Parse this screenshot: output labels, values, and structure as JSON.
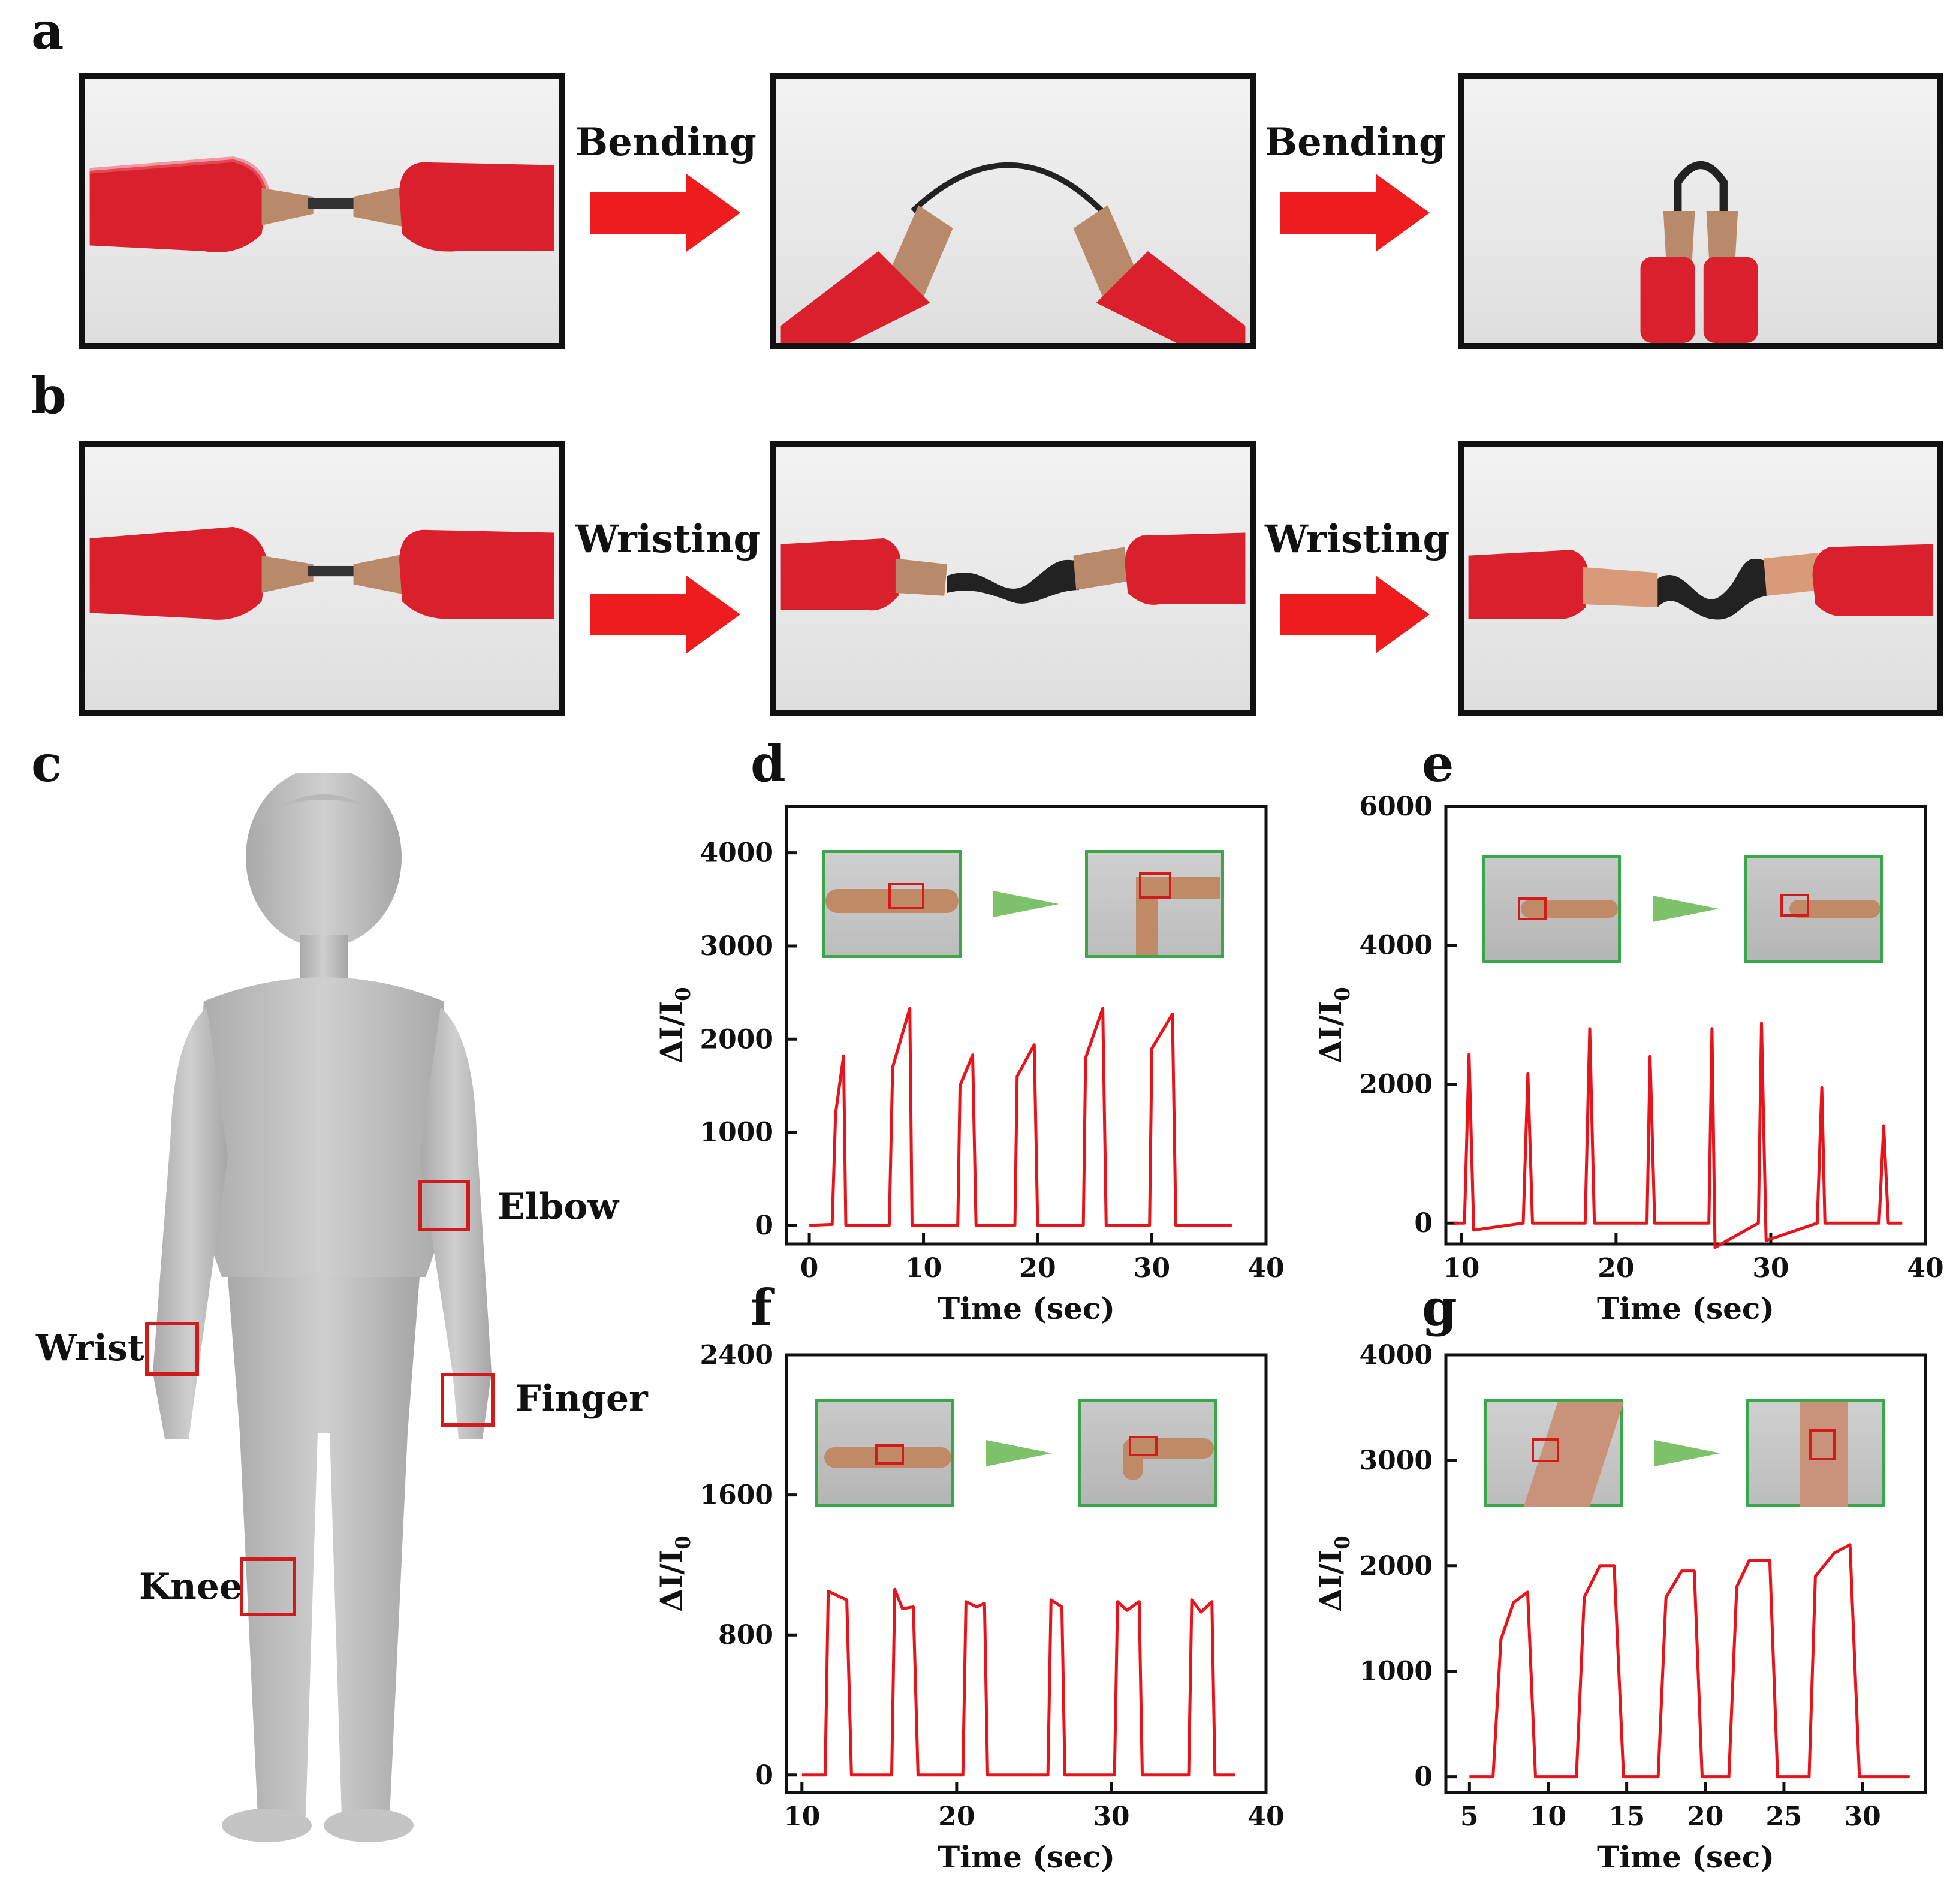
{
  "panels": {
    "a": "a",
    "b": "b",
    "c": "c",
    "d": "d",
    "e": "e",
    "f": "f",
    "g": "g"
  },
  "row_a": {
    "step1": "Bending",
    "step2": "Bending"
  },
  "row_b": {
    "step1": "Wristing",
    "step2": "Wristing"
  },
  "body_labels": {
    "elbow": "Elbow",
    "wrist": "Wrist",
    "finger": "Finger",
    "knee": "Knee"
  },
  "colors": {
    "trace": "#e8141b",
    "inset_border": "#3aa84a",
    "clip_red": "#d9202c",
    "arrow_red": "#ee1c1c"
  },
  "chart_data": [
    {
      "id": "d",
      "type": "line",
      "xlabel": "Time (sec)",
      "ylabel": "ΔI/I0",
      "xlim": [
        -2,
        40
      ],
      "ylim": [
        -200,
        4500
      ],
      "xticks": [
        0,
        10,
        20,
        30,
        40
      ],
      "yticks": [
        0,
        1000,
        2000,
        3000,
        4000
      ],
      "series": [
        {
          "points": [
            [
              0,
              0
            ],
            [
              2,
              10
            ],
            [
              2.3,
              1200
            ],
            [
              3,
              1820
            ],
            [
              3.2,
              0
            ],
            [
              7,
              0
            ],
            [
              7.3,
              1700
            ],
            [
              8.8,
              2330
            ],
            [
              9,
              0
            ],
            [
              13,
              0
            ],
            [
              13.2,
              1500
            ],
            [
              14.3,
              1830
            ],
            [
              14.6,
              0
            ],
            [
              18,
              0
            ],
            [
              18.2,
              1600
            ],
            [
              19.7,
              1940
            ],
            [
              20,
              0
            ],
            [
              24,
              0
            ],
            [
              24.2,
              1800
            ],
            [
              25.7,
              2330
            ],
            [
              26,
              0
            ],
            [
              29.8,
              0
            ],
            [
              30,
              1900
            ],
            [
              31.8,
              2270
            ],
            [
              32.1,
              0
            ],
            [
              37,
              0
            ]
          ]
        }
      ]
    },
    {
      "id": "e",
      "type": "line",
      "xlabel": "Time (sec)",
      "ylabel": "ΔI/I0",
      "xlim": [
        9,
        40
      ],
      "ylim": [
        -300,
        6000
      ],
      "xticks": [
        10,
        20,
        30,
        40
      ],
      "yticks": [
        0,
        2000,
        4000,
        6000
      ],
      "series": [
        {
          "points": [
            [
              9.5,
              0
            ],
            [
              10.2,
              0
            ],
            [
              10.5,
              2430
            ],
            [
              10.8,
              -100
            ],
            [
              14,
              0
            ],
            [
              14.3,
              2150
            ],
            [
              14.6,
              0
            ],
            [
              18,
              0
            ],
            [
              18.3,
              2800
            ],
            [
              18.6,
              0
            ],
            [
              22,
              0
            ],
            [
              22.2,
              2400
            ],
            [
              22.5,
              0
            ],
            [
              26,
              0
            ],
            [
              26.2,
              2800
            ],
            [
              26.4,
              -350
            ],
            [
              29.2,
              0
            ],
            [
              29.4,
              2880
            ],
            [
              29.7,
              -250
            ],
            [
              33,
              0
            ],
            [
              33.3,
              1950
            ],
            [
              33.5,
              0
            ],
            [
              37,
              0
            ],
            [
              37.3,
              1400
            ],
            [
              37.6,
              0
            ],
            [
              38.5,
              0
            ]
          ]
        }
      ]
    },
    {
      "id": "f",
      "type": "line",
      "xlabel": "Time (sec)",
      "ylabel": "ΔI/I0",
      "xlim": [
        9,
        40
      ],
      "ylim": [
        -100,
        2400
      ],
      "xticks": [
        10,
        20,
        30,
        40
      ],
      "yticks": [
        0,
        800,
        1600,
        2400
      ],
      "series": [
        {
          "points": [
            [
              10,
              0
            ],
            [
              11.5,
              0
            ],
            [
              11.7,
              1050
            ],
            [
              12.4,
              1020
            ],
            [
              12.9,
              1000
            ],
            [
              13.2,
              0
            ],
            [
              15.8,
              0
            ],
            [
              16,
              1060
            ],
            [
              16.5,
              950
            ],
            [
              17.2,
              960
            ],
            [
              17.5,
              0
            ],
            [
              20.4,
              0
            ],
            [
              20.6,
              990
            ],
            [
              21.3,
              960
            ],
            [
              21.8,
              980
            ],
            [
              22,
              0
            ],
            [
              25.9,
              0
            ],
            [
              26.1,
              1000
            ],
            [
              26.8,
              960
            ],
            [
              27,
              0
            ],
            [
              30.2,
              0
            ],
            [
              30.4,
              990
            ],
            [
              31,
              940
            ],
            [
              31.8,
              990
            ],
            [
              32,
              0
            ],
            [
              35,
              0
            ],
            [
              35.2,
              1000
            ],
            [
              35.8,
              930
            ],
            [
              36.5,
              990
            ],
            [
              36.7,
              0
            ],
            [
              38,
              0
            ]
          ]
        }
      ]
    },
    {
      "id": "g",
      "type": "line",
      "xlabel": "Time (sec)",
      "ylabel": "ΔI/I0",
      "xlim": [
        3.5,
        34
      ],
      "ylim": [
        -150,
        4000
      ],
      "xticks": [
        5,
        10,
        15,
        20,
        25,
        30
      ],
      "yticks": [
        0,
        1000,
        2000,
        3000,
        4000
      ],
      "series": [
        {
          "points": [
            [
              5,
              0
            ],
            [
              6.5,
              0
            ],
            [
              7,
              1300
            ],
            [
              7.8,
              1650
            ],
            [
              8.7,
              1750
            ],
            [
              9.2,
              0
            ],
            [
              11.8,
              0
            ],
            [
              12.3,
              1700
            ],
            [
              13.3,
              2000
            ],
            [
              14.2,
              2000
            ],
            [
              14.8,
              0
            ],
            [
              17,
              0
            ],
            [
              17.5,
              1700
            ],
            [
              18.5,
              1950
            ],
            [
              19.3,
              1950
            ],
            [
              19.8,
              0
            ],
            [
              21.5,
              0
            ],
            [
              22,
              1800
            ],
            [
              22.8,
              2050
            ],
            [
              24.1,
              2050
            ],
            [
              24.6,
              0
            ],
            [
              26.6,
              0
            ],
            [
              27,
              1900
            ],
            [
              28.2,
              2120
            ],
            [
              29.2,
              2200
            ],
            [
              29.8,
              0
            ],
            [
              33,
              0
            ]
          ]
        }
      ]
    }
  ]
}
